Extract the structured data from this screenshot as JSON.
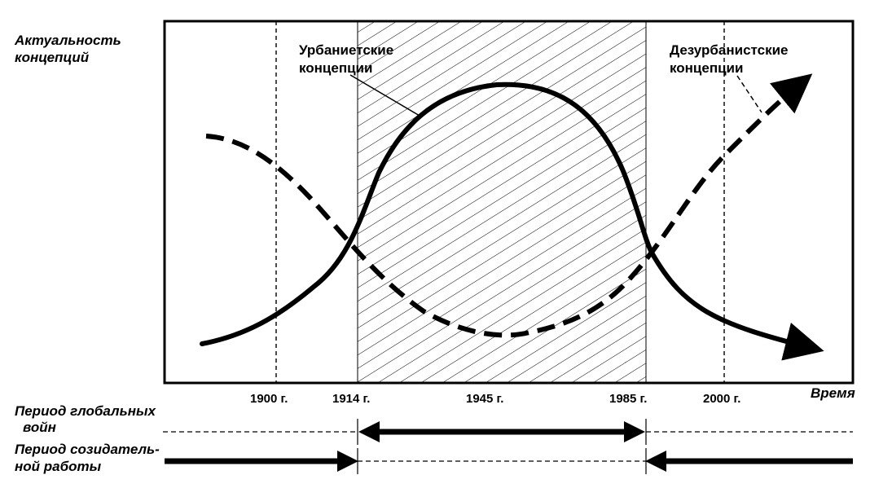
{
  "y_axis_label": [
    "Актуальность",
    "концепций"
  ],
  "x_axis_label": "Время",
  "curves": {
    "urbanist": {
      "label": [
        "Урбаниетские",
        "концепции"
      ]
    },
    "disurbanist": {
      "label": [
        "Дезурбанистские",
        "концепции"
      ]
    }
  },
  "ticks": [
    "1900 г.",
    "1914 г.",
    "1945 г.",
    "1985 г.",
    "2000 г."
  ],
  "timeline": {
    "wars_label": [
      "Период глобальных",
      "войн"
    ],
    "work_label": [
      "Период созидатель-",
      "ной работы"
    ]
  },
  "colors": {
    "ink": "#000000",
    "background": "#ffffff"
  }
}
